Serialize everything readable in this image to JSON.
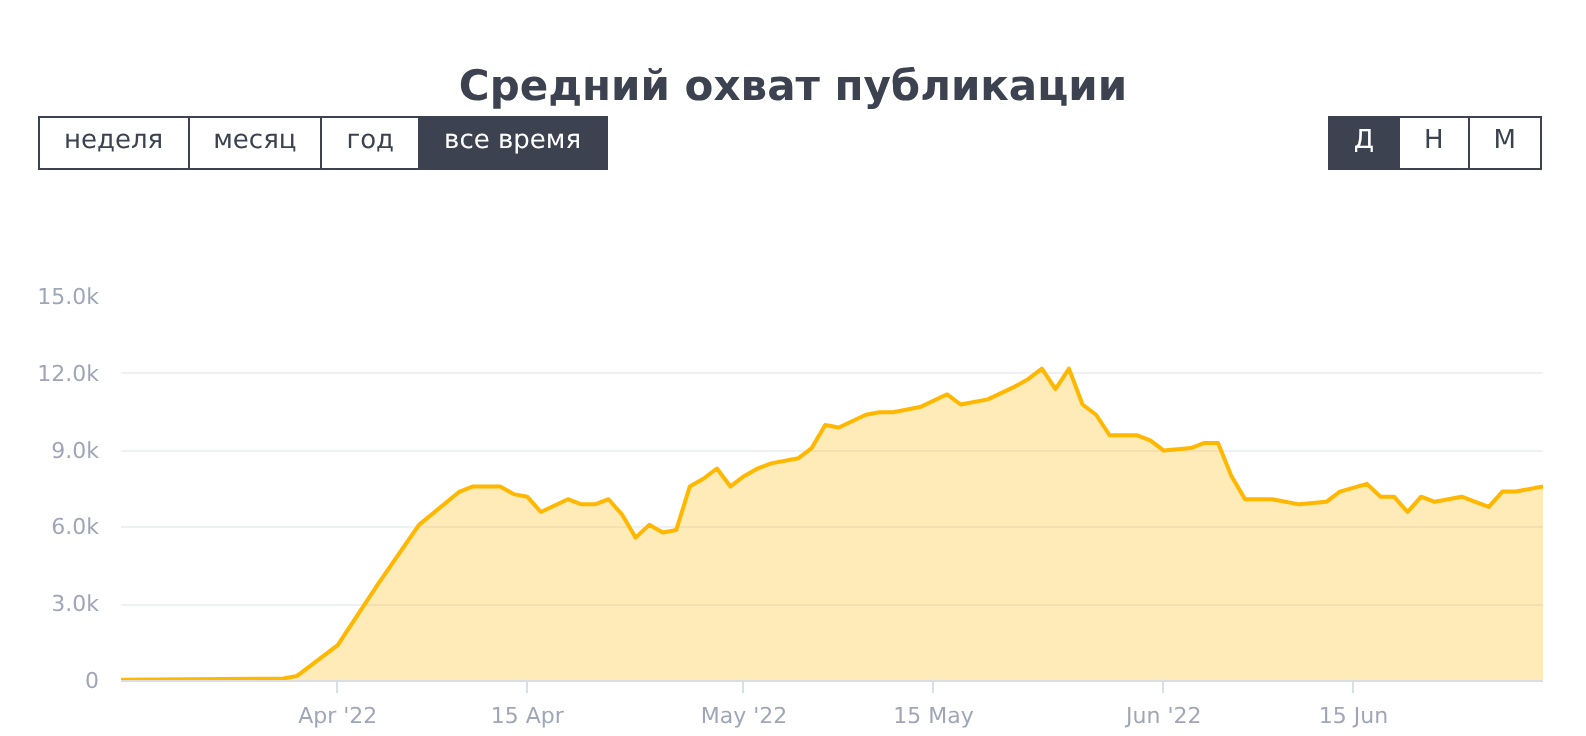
{
  "chart_data": {
    "type": "area",
    "title": "Средний охват публикации",
    "annotations": [
      "неделя",
      "месяц",
      "год",
      "все время",
      "Д",
      "Н",
      "М"
    ],
    "x": [
      "2022-03-16",
      "2022-03-28",
      "2022-03-29",
      "2022-04-01",
      "2022-04-04",
      "2022-04-07",
      "2022-04-10",
      "2022-04-11",
      "2022-04-13",
      "2022-04-14",
      "2022-04-15",
      "2022-04-16",
      "2022-04-18",
      "2022-04-19",
      "2022-04-20",
      "2022-04-21",
      "2022-04-22",
      "2022-04-23",
      "2022-04-24",
      "2022-04-25",
      "2022-04-26",
      "2022-04-27",
      "2022-04-28",
      "2022-04-29",
      "2022-04-30",
      "2022-05-01",
      "2022-05-02",
      "2022-05-03",
      "2022-05-05",
      "2022-05-06",
      "2022-05-07",
      "2022-05-08",
      "2022-05-10",
      "2022-05-11",
      "2022-05-12",
      "2022-05-14",
      "2022-05-16",
      "2022-05-17",
      "2022-05-19",
      "2022-05-21",
      "2022-05-22",
      "2022-05-23",
      "2022-05-24",
      "2022-05-25",
      "2022-05-26",
      "2022-05-27",
      "2022-05-28",
      "2022-05-30",
      "2022-05-31",
      "2022-06-01",
      "2022-06-03",
      "2022-06-04",
      "2022-06-05",
      "2022-06-06",
      "2022-06-07",
      "2022-06-09",
      "2022-06-11",
      "2022-06-13",
      "2022-06-14",
      "2022-06-16",
      "2022-06-17",
      "2022-06-18",
      "2022-06-19",
      "2022-06-20",
      "2022-06-21",
      "2022-06-23",
      "2022-06-24",
      "2022-06-25",
      "2022-06-26",
      "2022-06-27",
      "2022-06-29"
    ],
    "series": [
      {
        "color": "#ffb700",
        "values": [
          50,
          100,
          200,
          1400,
          3800,
          6100,
          7400,
          7600,
          7600,
          7300,
          7200,
          6600,
          7100,
          6900,
          6900,
          7100,
          6500,
          5600,
          6100,
          5800,
          5900,
          7600,
          7900,
          8300,
          7600,
          8000,
          8300,
          8500,
          8700,
          9100,
          10000,
          9900,
          10400,
          10500,
          10500,
          10700,
          11200,
          10800,
          11000,
          11500,
          11800,
          12200,
          11400,
          12200,
          10800,
          10400,
          9600,
          9600,
          9400,
          9000,
          9100,
          9300,
          9300,
          8000,
          7100,
          7100,
          6900,
          7000,
          7400,
          7700,
          7200,
          7200,
          6600,
          7200,
          7000,
          7200,
          7000,
          6800,
          7400,
          7400,
          7600
        ]
      }
    ],
    "xlim": [
      "2022-03-16",
      "2022-06-29"
    ],
    "xticks": [
      {
        "value": "2022-04-01",
        "label": "Apr '22"
      },
      {
        "value": "2022-04-15",
        "label": "15 Apr"
      },
      {
        "value": "2022-05-01",
        "label": "May '22"
      },
      {
        "value": "2022-05-15",
        "label": "15 May"
      },
      {
        "value": "2022-06-01",
        "label": "Jun '22"
      },
      {
        "value": "2022-06-15",
        "label": "15 Jun"
      }
    ],
    "ylim": [
      0,
      15000
    ],
    "yticks": [
      {
        "value": 0,
        "label": "0"
      },
      {
        "value": 3000,
        "label": "3.0k"
      },
      {
        "value": 6000,
        "label": "6.0k"
      },
      {
        "value": 9000,
        "label": "9.0k"
      },
      {
        "value": 12000,
        "label": "12.0k"
      },
      {
        "value": 15000,
        "label": "15.0k"
      }
    ],
    "grid": "y"
  }
}
